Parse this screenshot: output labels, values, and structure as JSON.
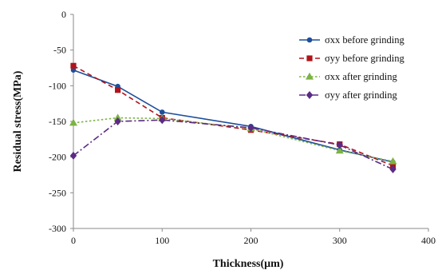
{
  "chart_data": {
    "type": "line",
    "title": "",
    "xlabel": "Thickness(μm)",
    "ylabel": "Residual stress(MPa)",
    "xlim": [
      0,
      400
    ],
    "ylim": [
      -300,
      0
    ],
    "xticks": [
      0,
      100,
      200,
      300,
      400
    ],
    "yticks": [
      0,
      -50,
      -100,
      -150,
      -200,
      -250,
      -300
    ],
    "grid": false,
    "legend_position": "top-right",
    "series": [
      {
        "name": "σxx before grinding",
        "color": "#1f4e9c",
        "marker": "circle",
        "line_style": "solid",
        "x": [
          0,
          50,
          100,
          200,
          300,
          360
        ],
        "values": [
          -78,
          -101,
          -137,
          -157,
          -190,
          -207
        ]
      },
      {
        "name": "σyy before grinding",
        "color": "#b0141a",
        "marker": "square",
        "line_style": "dashed",
        "x": [
          0,
          50,
          100,
          200,
          300,
          360
        ],
        "values": [
          -72,
          -106,
          -145,
          -162,
          -182,
          -212
        ]
      },
      {
        "name": "σxx after grinding",
        "color": "#7cb342",
        "marker": "triangle",
        "line_style": "dotted",
        "x": [
          0,
          50,
          100,
          200,
          300,
          360
        ],
        "values": [
          -152,
          -145,
          -146,
          -160,
          -191,
          -206
        ]
      },
      {
        "name": "σyy after grinding",
        "color": "#5b2a86",
        "marker": "diamond",
        "line_style": "dashdot",
        "x": [
          0,
          50,
          100,
          200,
          300,
          360
        ],
        "values": [
          -198,
          -150,
          -148,
          -159,
          -183,
          -217
        ]
      }
    ]
  }
}
